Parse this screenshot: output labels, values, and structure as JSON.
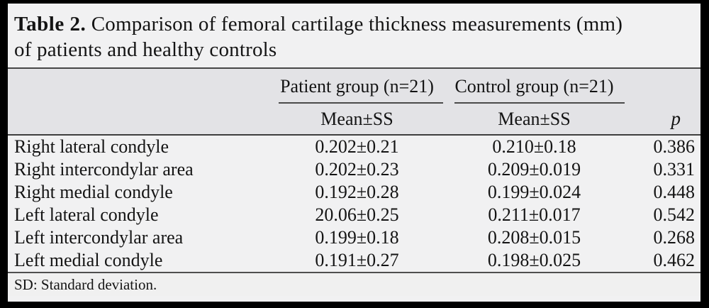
{
  "title": {
    "label": "Table 2.",
    "line1_rest": " Comparison of femoral cartilage thickness measurements (mm)",
    "line2": "of patients and healthy controls"
  },
  "header": {
    "patient_group": "Patient group (n=21)",
    "control_group": "Control group (n=21)",
    "patient_sub": "Mean±SS",
    "control_sub": "Mean±SS",
    "p_sub": "p"
  },
  "rows": [
    {
      "label": "Right lateral condyle",
      "patient": "0.202±0.21",
      "control": "0.210±0.18",
      "p": "0.386"
    },
    {
      "label": "Right intercondylar area",
      "patient": "0.202±0.23",
      "control": "0.209±0.019",
      "p": "0.331"
    },
    {
      "label": "Right medial condyle",
      "patient": "0.192±0.28",
      "control": "0.199±0.024",
      "p": "0.448"
    },
    {
      "label": "Left lateral condyle",
      "patient": "20.06±0.25",
      "control": "0.211±0.017",
      "p": "0.542"
    },
    {
      "label": "Left intercondylar area",
      "patient": "0.199±0.18",
      "control": "0.208±0.015",
      "p": "0.268"
    },
    {
      "label": "Left medial condyle",
      "patient": "0.191±0.27",
      "control": "0.198±0.025",
      "p": "0.462"
    }
  ],
  "footnote": "SD: Standard deviation.",
  "colors": {
    "outer_border": "#000000",
    "paper_bg": "#f1f1f2",
    "header_band_bg": "#e3e3e6",
    "rule": "#474747",
    "text": "#141414"
  }
}
